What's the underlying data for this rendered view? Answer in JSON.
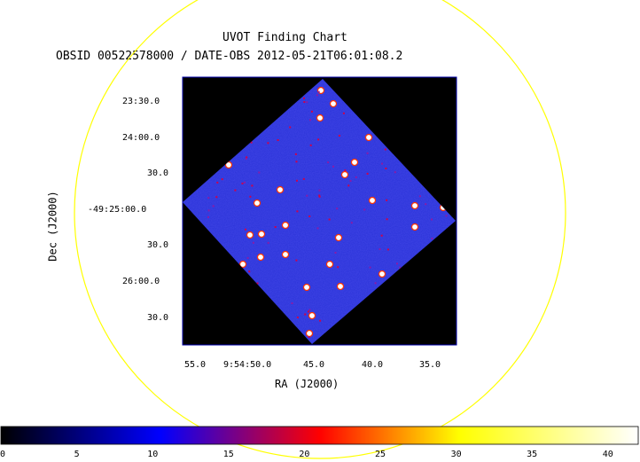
{
  "header": {
    "title": "UVOT Finding Chart",
    "subtitle": "OBSID 00522578000 / DATE-OBS 2012-05-21T06:01:08.2"
  },
  "colors": {
    "circle": "#ffff00",
    "frame": "#0000aa",
    "sky": "#2a33d8",
    "background": "#000000",
    "page": "#ffffff"
  },
  "chart_data": {
    "type": "heatmap",
    "xlabel": "RA (J2000)",
    "ylabel": "Dec (J2000)",
    "x_ticks": [
      "55.0",
      "9:54:50.0",
      "45.0",
      "40.0",
      "35.0"
    ],
    "y_ticks": [
      "23:30.0",
      "24:00.0",
      "30.0",
      "-49:25:00.0",
      "30.0",
      "26:00.0",
      "30.0"
    ],
    "colorbar": {
      "ticks": [
        "0",
        "5",
        "10",
        "15",
        "20",
        "25",
        "30",
        "35",
        "40"
      ],
      "range": [
        0,
        42
      ],
      "colormap": [
        "#000000",
        "#0000ff",
        "#ff0000",
        "#ffff00",
        "#ffffff"
      ]
    }
  }
}
